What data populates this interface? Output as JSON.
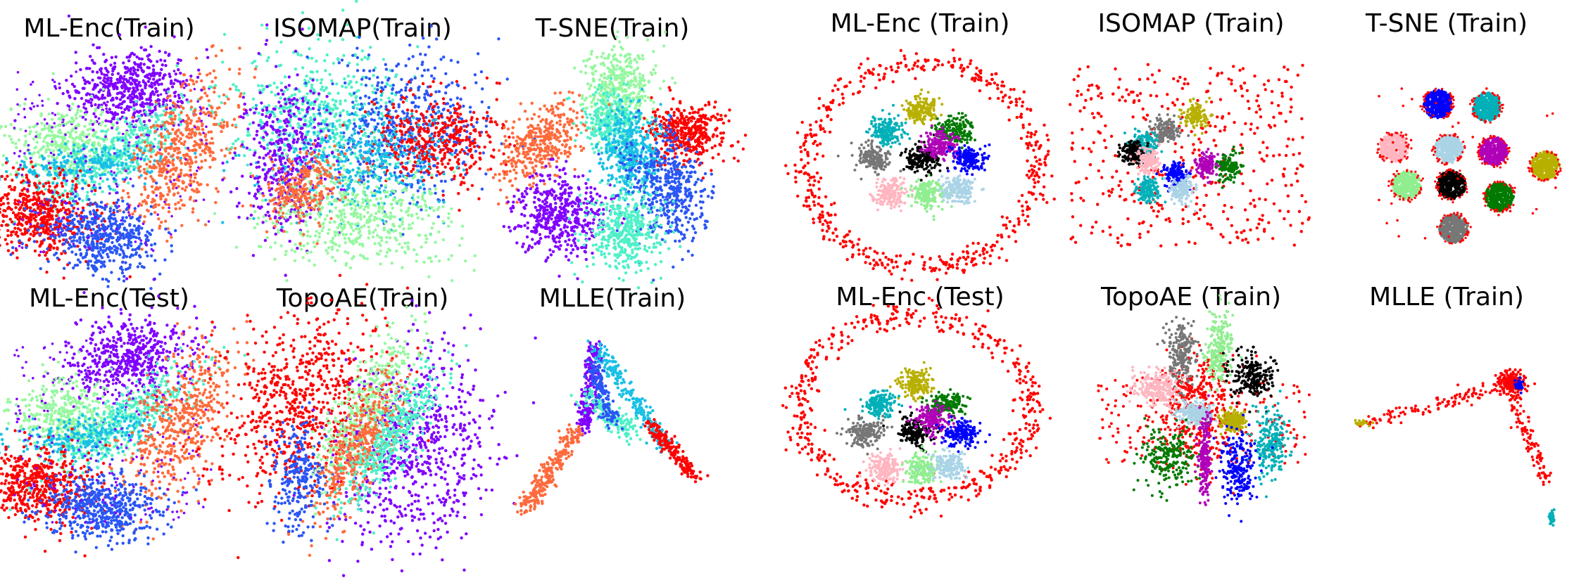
{
  "chart_data": [
    {
      "type": "scatter",
      "title": "ML-Enc(Train)",
      "kind": "mlenc",
      "series_colors": [
        "#8000ff",
        "#2a56f5",
        "#19c0e6",
        "#4ff0c8",
        "#96f8a0",
        "#ff6a3c",
        "#ff0000"
      ]
    },
    {
      "type": "scatter",
      "title": "ISOMAP(Train)",
      "kind": "isomap",
      "series_colors": [
        "#8000ff",
        "#2a56f5",
        "#19c0e6",
        "#4ff0c8",
        "#96f8a0",
        "#ff6a3c",
        "#ff0000"
      ]
    },
    {
      "type": "scatter",
      "title": "T-SNE(Train)",
      "kind": "tsne",
      "series_colors": [
        "#8000ff",
        "#2a56f5",
        "#19c0e6",
        "#4ff0c8",
        "#96f8a0",
        "#ff6a3c",
        "#ff0000"
      ]
    },
    {
      "type": "scatter",
      "title": "ML-Enc(Test)",
      "kind": "mlenc",
      "series_colors": [
        "#8000ff",
        "#2a56f5",
        "#19c0e6",
        "#4ff0c8",
        "#96f8a0",
        "#ff6a3c",
        "#ff0000"
      ]
    },
    {
      "type": "scatter",
      "title": "TopoAE(Train)",
      "kind": "topoae",
      "series_colors": [
        "#8000ff",
        "#2a56f5",
        "#19c0e6",
        "#4ff0c8",
        "#96f8a0",
        "#ff6a3c",
        "#ff0000"
      ]
    },
    {
      "type": "scatter",
      "title": "MLLE(Train)",
      "kind": "mlle",
      "series_colors": [
        "#8000ff",
        "#2a56f5",
        "#19c0e6",
        "#4ff0c8",
        "#96f8a0",
        "#ff6a3c",
        "#ff0000"
      ]
    },
    {
      "type": "scatter",
      "title": "ML-Enc (Train)",
      "kind": "ring",
      "series_colors": [
        "#ff0000",
        "#b8b000",
        "#00b0b8",
        "#007a00",
        "#777777",
        "#000000",
        "#b000b8",
        "#0000ff",
        "#ffb6c1",
        "#90ee90",
        "#aad4e6"
      ]
    },
    {
      "type": "scatter",
      "title": "ISOMAP (Train)",
      "kind": "scattered",
      "series_colors": [
        "#ff0000",
        "#b8b000",
        "#00b0b8",
        "#007a00",
        "#777777",
        "#000000",
        "#b000b8",
        "#0000ff",
        "#ffb6c1",
        "#90ee90",
        "#aad4e6"
      ]
    },
    {
      "type": "scatter",
      "title": "T-SNE (Train)",
      "kind": "tsnegrid",
      "series_colors": [
        "#ff0000",
        "#b8b000",
        "#00b0b8",
        "#007a00",
        "#777777",
        "#000000",
        "#b000b8",
        "#0000ff",
        "#ffb6c1",
        "#90ee90",
        "#aad4e6"
      ]
    },
    {
      "type": "scatter",
      "title": "ML-Enc (Test)",
      "kind": "ring2",
      "series_colors": [
        "#ff0000",
        "#b8b000",
        "#00b0b8",
        "#007a00",
        "#777777",
        "#000000",
        "#b000b8",
        "#0000ff",
        "#ffb6c1",
        "#90ee90",
        "#aad4e6"
      ]
    },
    {
      "type": "scatter",
      "title": "TopoAE (Train)",
      "kind": "topoae2",
      "series_colors": [
        "#ff0000",
        "#b8b000",
        "#00b0b8",
        "#007a00",
        "#777777",
        "#000000",
        "#b000b8",
        "#0000ff",
        "#ffb6c1",
        "#90ee90",
        "#aad4e6"
      ]
    },
    {
      "type": "scatter",
      "title": "MLLE (Train)",
      "kind": "mlle2",
      "series_colors": [
        "#ff0000",
        "#b8b000",
        "#00b0b8",
        "#007a00",
        "#777777",
        "#000000",
        "#b000b8",
        "#0000ff",
        "#ffb6c1",
        "#90ee90",
        "#aad4e6"
      ]
    }
  ]
}
